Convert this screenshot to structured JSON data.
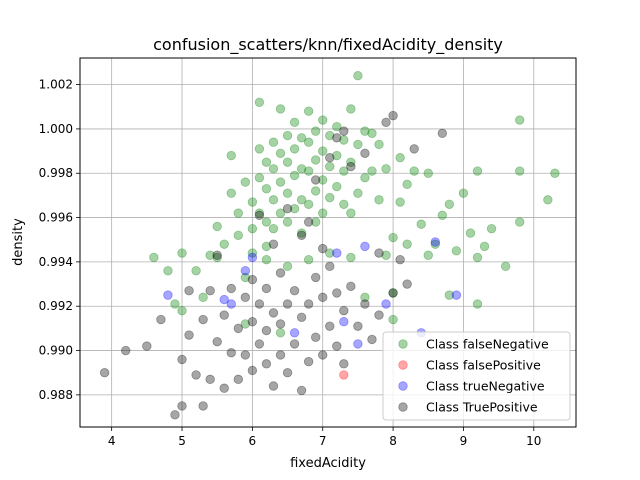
{
  "chart_data": {
    "type": "scatter",
    "title": "confusion_scatters/knn/fixedAcidity_density",
    "xlabel": "fixedAcidity",
    "ylabel": "density",
    "xlim": [
      3.55,
      10.6
    ],
    "ylim": [
      0.98655,
      1.0032
    ],
    "xticks": [
      4,
      5,
      6,
      7,
      8,
      9,
      10
    ],
    "xtick_labels": [
      "4",
      "5",
      "6",
      "7",
      "8",
      "9",
      "10"
    ],
    "yticks": [
      0.988,
      0.99,
      0.992,
      0.994,
      0.996,
      0.998,
      1.0,
      1.002
    ],
    "ytick_labels": [
      "0.988",
      "0.990",
      "0.992",
      "0.994",
      "0.996",
      "0.998",
      "1.000",
      "1.002"
    ],
    "grid": true,
    "legend_position": "lower-right",
    "series": [
      {
        "name": "Class falseNegative",
        "color": "#008000",
        "alpha": 0.35,
        "points": [
          [
            4.6,
            0.9942
          ],
          [
            4.8,
            0.9936
          ],
          [
            4.9,
            0.9921
          ],
          [
            5.0,
            0.9944
          ],
          [
            5.0,
            0.9918
          ],
          [
            5.2,
            0.9936
          ],
          [
            5.3,
            0.9924
          ],
          [
            5.4,
            0.9943
          ],
          [
            5.5,
            0.9942
          ],
          [
            5.5,
            0.9956
          ],
          [
            5.6,
            0.9948
          ],
          [
            5.7,
            0.9988
          ],
          [
            5.7,
            0.9971
          ],
          [
            5.8,
            0.9962
          ],
          [
            5.8,
            0.9952
          ],
          [
            5.9,
            0.9976
          ],
          [
            5.9,
            0.9933
          ],
          [
            6.0,
            0.9967
          ],
          [
            6.0,
            0.9955
          ],
          [
            6.0,
            0.9944
          ],
          [
            6.1,
            1.0012
          ],
          [
            6.1,
            0.9991
          ],
          [
            6.1,
            0.9978
          ],
          [
            6.1,
            0.9962
          ],
          [
            6.2,
            0.9985
          ],
          [
            6.2,
            0.9973
          ],
          [
            6.2,
            0.9958
          ],
          [
            6.2,
            0.9947
          ],
          [
            6.3,
            0.9994
          ],
          [
            6.3,
            0.9982
          ],
          [
            6.3,
            0.9968
          ],
          [
            6.3,
            0.9955
          ],
          [
            6.4,
            1.0009
          ],
          [
            6.4,
            0.9989
          ],
          [
            6.4,
            0.9976
          ],
          [
            6.4,
            0.9962
          ],
          [
            6.5,
            0.9997
          ],
          [
            6.5,
            0.9985
          ],
          [
            6.5,
            0.9971
          ],
          [
            6.5,
            0.9958
          ],
          [
            6.6,
            1.0003
          ],
          [
            6.6,
            0.9991
          ],
          [
            6.6,
            0.9979
          ],
          [
            6.6,
            0.9964
          ],
          [
            6.7,
            0.9996
          ],
          [
            6.7,
            0.9982
          ],
          [
            6.7,
            0.9968
          ],
          [
            6.7,
            0.9953
          ],
          [
            6.8,
            1.0008
          ],
          [
            6.8,
            0.9994
          ],
          [
            6.8,
            0.9981
          ],
          [
            6.8,
            0.9966
          ],
          [
            6.9,
            0.9999
          ],
          [
            6.9,
            0.9986
          ],
          [
            6.9,
            0.9972
          ],
          [
            6.9,
            0.9958
          ],
          [
            7.0,
            1.0004
          ],
          [
            7.0,
            0.999
          ],
          [
            7.0,
            0.9977
          ],
          [
            7.0,
            0.9962
          ],
          [
            7.1,
            0.9997
          ],
          [
            7.1,
            0.9983
          ],
          [
            7.1,
            0.9969
          ],
          [
            7.2,
            1.0001
          ],
          [
            7.2,
            0.9988
          ],
          [
            7.2,
            0.9974
          ],
          [
            7.3,
            0.9995
          ],
          [
            7.3,
            0.9981
          ],
          [
            7.3,
            0.9966
          ],
          [
            7.4,
            1.0009
          ],
          [
            7.4,
            0.9985
          ],
          [
            7.4,
            0.9962
          ],
          [
            7.5,
            1.0024
          ],
          [
            7.5,
            0.9993
          ],
          [
            7.5,
            0.9971
          ],
          [
            7.6,
            0.9999
          ],
          [
            7.6,
            0.9978
          ],
          [
            7.7,
            0.9998
          ],
          [
            7.7,
            0.9981
          ],
          [
            7.8,
            0.9993
          ],
          [
            7.8,
            0.9968
          ],
          [
            7.9,
            0.9982
          ],
          [
            7.9,
            0.9943
          ],
          [
            8.0,
            0.9951
          ],
          [
            8.0,
            0.9926
          ],
          [
            8.1,
            0.9987
          ],
          [
            8.1,
            0.9967
          ],
          [
            8.2,
            0.9975
          ],
          [
            8.2,
            0.9948
          ],
          [
            8.3,
            0.9981
          ],
          [
            8.4,
            0.9957
          ],
          [
            8.5,
            0.998
          ],
          [
            8.5,
            0.9943
          ],
          [
            8.6,
            0.9948
          ],
          [
            8.7,
            0.9961
          ],
          [
            8.8,
            0.9966
          ],
          [
            8.8,
            0.9925
          ],
          [
            8.9,
            0.9945
          ],
          [
            9.0,
            0.9971
          ],
          [
            9.1,
            0.9953
          ],
          [
            9.2,
            0.9981
          ],
          [
            9.2,
            0.9942
          ],
          [
            9.3,
            0.9947
          ],
          [
            9.4,
            0.9955
          ],
          [
            9.6,
            0.9938
          ],
          [
            9.8,
            1.0004
          ],
          [
            9.8,
            0.9981
          ],
          [
            9.8,
            0.9958
          ],
          [
            10.2,
            0.9968
          ],
          [
            10.3,
            0.998
          ],
          [
            6.2,
            0.9941
          ],
          [
            6.5,
            0.9938
          ],
          [
            6.8,
            0.9941
          ],
          [
            7.1,
            0.9944
          ],
          [
            7.4,
            0.9942
          ],
          [
            5.9,
            0.9912
          ],
          [
            6.4,
            0.9908
          ],
          [
            7.6,
            0.9924
          ],
          [
            8.0,
            0.9914
          ],
          [
            9.2,
            0.9921
          ]
        ]
      },
      {
        "name": "Class falsePositive",
        "color": "#ff0000",
        "alpha": 0.35,
        "points": [
          [
            7.3,
            0.9889
          ]
        ]
      },
      {
        "name": "Class trueNegative",
        "color": "#0000ff",
        "alpha": 0.35,
        "points": [
          [
            4.8,
            0.9925
          ],
          [
            5.6,
            0.9923
          ],
          [
            5.7,
            0.9921
          ],
          [
            5.9,
            0.9936
          ],
          [
            6.0,
            0.9942
          ],
          [
            6.6,
            0.9908
          ],
          [
            7.2,
            0.9944
          ],
          [
            7.3,
            0.9913
          ],
          [
            7.5,
            0.9903
          ],
          [
            7.9,
            0.9921
          ],
          [
            8.4,
            0.9908
          ],
          [
            8.6,
            0.9949
          ],
          [
            8.9,
            0.9925
          ],
          [
            7.6,
            0.9947
          ]
        ]
      },
      {
        "name": "Class TruePositive",
        "color": "#000000",
        "alpha": 0.35,
        "points": [
          [
            3.9,
            0.989
          ],
          [
            4.2,
            0.99
          ],
          [
            4.5,
            0.9902
          ],
          [
            4.7,
            0.9914
          ],
          [
            4.9,
            0.9871
          ],
          [
            5.0,
            0.9875
          ],
          [
            5.0,
            0.9896
          ],
          [
            5.1,
            0.9907
          ],
          [
            5.1,
            0.9927
          ],
          [
            5.2,
            0.9889
          ],
          [
            5.3,
            0.9875
          ],
          [
            5.3,
            0.9914
          ],
          [
            5.4,
            0.9927
          ],
          [
            5.4,
            0.9887
          ],
          [
            5.5,
            0.9904
          ],
          [
            5.6,
            0.9883
          ],
          [
            5.6,
            0.9916
          ],
          [
            5.7,
            0.9899
          ],
          [
            5.7,
            0.9928
          ],
          [
            5.8,
            0.9887
          ],
          [
            5.8,
            0.991
          ],
          [
            5.9,
            0.9898
          ],
          [
            5.9,
            0.9924
          ],
          [
            6.0,
            0.9891
          ],
          [
            6.0,
            0.9913
          ],
          [
            6.0,
            0.9932
          ],
          [
            6.1,
            0.9903
          ],
          [
            6.1,
            0.9921
          ],
          [
            6.2,
            0.9894
          ],
          [
            6.2,
            0.9909
          ],
          [
            6.2,
            0.9928
          ],
          [
            6.3,
            0.9884
          ],
          [
            6.3,
            0.9917
          ],
          [
            6.4,
            0.9898
          ],
          [
            6.4,
            0.9912
          ],
          [
            6.4,
            0.9935
          ],
          [
            6.5,
            0.989
          ],
          [
            6.5,
            0.9921
          ],
          [
            6.6,
            0.9903
          ],
          [
            6.6,
            0.9927
          ],
          [
            6.7,
            0.9882
          ],
          [
            6.7,
            0.9915
          ],
          [
            6.8,
            0.9895
          ],
          [
            6.8,
            0.9921
          ],
          [
            6.9,
            0.9906
          ],
          [
            6.9,
            0.9933
          ],
          [
            7.0,
            0.9898
          ],
          [
            7.0,
            0.9924
          ],
          [
            7.1,
            0.9911
          ],
          [
            7.1,
            0.9938
          ],
          [
            7.2,
            0.9902
          ],
          [
            7.2,
            0.9926
          ],
          [
            7.3,
            0.9894
          ],
          [
            7.3,
            0.9918
          ],
          [
            7.4,
            0.9929
          ],
          [
            7.5,
            0.9911
          ],
          [
            7.6,
            0.9921
          ],
          [
            7.7,
            0.9905
          ],
          [
            7.8,
            0.9916
          ],
          [
            8.0,
            0.9926
          ],
          [
            6.1,
            0.9961
          ],
          [
            6.3,
            0.9948
          ],
          [
            6.5,
            0.9964
          ],
          [
            6.7,
            0.9952
          ],
          [
            6.9,
            0.9977
          ],
          [
            7.1,
            0.9987
          ],
          [
            7.2,
            0.9996
          ],
          [
            7.3,
            0.9999
          ],
          [
            7.4,
            0.9983
          ],
          [
            7.6,
            0.9989
          ],
          [
            7.9,
            1.0003
          ],
          [
            8.0,
            1.0006
          ],
          [
            8.3,
            0.9991
          ],
          [
            8.7,
            0.9998
          ],
          [
            8.1,
            0.9941
          ],
          [
            8.2,
            0.993
          ],
          [
            7.8,
            0.9944
          ],
          [
            7.0,
            0.9946
          ],
          [
            6.8,
            0.9958
          ],
          [
            5.5,
            0.9943
          ]
        ]
      }
    ]
  }
}
